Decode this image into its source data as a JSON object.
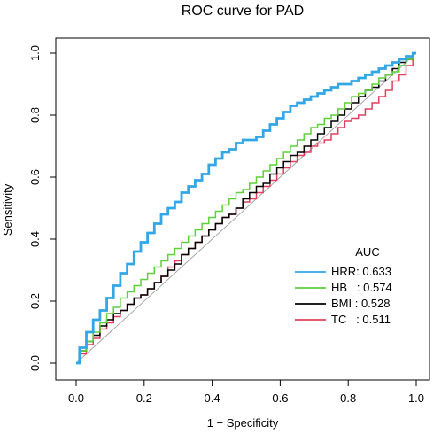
{
  "chart_data": {
    "type": "line",
    "title": "ROC curve for PAD",
    "xlabel": "1 − Specificity",
    "ylabel": "Sensitivity",
    "xlim": [
      0,
      1
    ],
    "ylim": [
      0,
      1
    ],
    "x_ticks": [
      "0.0",
      "0.2",
      "0.4",
      "0.6",
      "0.8",
      "1.0"
    ],
    "y_ticks": [
      "0.0",
      "0.2",
      "0.4",
      "0.6",
      "0.8",
      "1.0"
    ],
    "grid": false,
    "reference_line": {
      "from": [
        0,
        0
      ],
      "to": [
        1,
        1
      ],
      "color": "#a6a6a6"
    },
    "legend": {
      "title": "AUC",
      "position": "bottom-right",
      "entries": [
        "HRR: 0.633",
        "HB   : 0.574",
        "BMI : 0.528",
        "TC   : 0.511"
      ]
    },
    "series": [
      {
        "name": "HRR",
        "auc": 0.633,
        "color": "#33a6e5",
        "x": [
          0,
          0.02,
          0.04,
          0.06,
          0.08,
          0.1,
          0.12,
          0.14,
          0.16,
          0.18,
          0.2,
          0.22,
          0.24,
          0.26,
          0.28,
          0.3,
          0.32,
          0.34,
          0.36,
          0.38,
          0.4,
          0.42,
          0.44,
          0.46,
          0.48,
          0.5,
          0.52,
          0.54,
          0.56,
          0.58,
          0.6,
          0.62,
          0.64,
          0.66,
          0.68,
          0.7,
          0.72,
          0.74,
          0.76,
          0.78,
          0.8,
          0.82,
          0.84,
          0.86,
          0.88,
          0.9,
          0.92,
          0.94,
          0.96,
          0.98,
          1.0
        ],
        "y": [
          0,
          0.05,
          0.1,
          0.14,
          0.17,
          0.21,
          0.25,
          0.29,
          0.32,
          0.36,
          0.39,
          0.42,
          0.45,
          0.48,
          0.5,
          0.52,
          0.55,
          0.57,
          0.59,
          0.61,
          0.64,
          0.66,
          0.68,
          0.69,
          0.71,
          0.72,
          0.72,
          0.73,
          0.75,
          0.77,
          0.79,
          0.81,
          0.83,
          0.84,
          0.85,
          0.86,
          0.87,
          0.88,
          0.89,
          0.9,
          0.9,
          0.91,
          0.92,
          0.93,
          0.94,
          0.95,
          0.96,
          0.97,
          0.98,
          0.99,
          1.0
        ]
      },
      {
        "name": "HB",
        "auc": 0.574,
        "color": "#5fcf3a",
        "x": [
          0,
          0.02,
          0.04,
          0.06,
          0.08,
          0.1,
          0.12,
          0.14,
          0.16,
          0.18,
          0.2,
          0.22,
          0.24,
          0.26,
          0.28,
          0.3,
          0.32,
          0.34,
          0.36,
          0.38,
          0.4,
          0.42,
          0.44,
          0.46,
          0.48,
          0.5,
          0.52,
          0.54,
          0.56,
          0.58,
          0.6,
          0.62,
          0.64,
          0.66,
          0.68,
          0.7,
          0.72,
          0.74,
          0.76,
          0.78,
          0.8,
          0.82,
          0.84,
          0.86,
          0.88,
          0.9,
          0.92,
          0.94,
          0.96,
          0.98,
          1.0
        ],
        "y": [
          0,
          0.04,
          0.07,
          0.1,
          0.13,
          0.16,
          0.18,
          0.21,
          0.23,
          0.25,
          0.27,
          0.29,
          0.31,
          0.33,
          0.35,
          0.37,
          0.39,
          0.41,
          0.43,
          0.45,
          0.47,
          0.49,
          0.51,
          0.53,
          0.55,
          0.56,
          0.58,
          0.6,
          0.62,
          0.64,
          0.66,
          0.68,
          0.7,
          0.72,
          0.74,
          0.76,
          0.77,
          0.79,
          0.8,
          0.82,
          0.84,
          0.86,
          0.87,
          0.88,
          0.9,
          0.92,
          0.93,
          0.94,
          0.96,
          0.98,
          1.0
        ]
      },
      {
        "name": "BMI",
        "auc": 0.528,
        "color": "#000000",
        "x": [
          0,
          0.02,
          0.04,
          0.06,
          0.08,
          0.1,
          0.12,
          0.14,
          0.16,
          0.18,
          0.2,
          0.22,
          0.24,
          0.26,
          0.28,
          0.3,
          0.32,
          0.34,
          0.36,
          0.38,
          0.4,
          0.42,
          0.44,
          0.46,
          0.48,
          0.5,
          0.52,
          0.54,
          0.56,
          0.58,
          0.6,
          0.62,
          0.64,
          0.66,
          0.68,
          0.7,
          0.72,
          0.74,
          0.76,
          0.78,
          0.8,
          0.82,
          0.84,
          0.86,
          0.88,
          0.9,
          0.92,
          0.94,
          0.96,
          0.98,
          1.0
        ],
        "y": [
          0,
          0.04,
          0.07,
          0.09,
          0.12,
          0.14,
          0.16,
          0.17,
          0.19,
          0.21,
          0.22,
          0.24,
          0.26,
          0.28,
          0.3,
          0.32,
          0.35,
          0.37,
          0.39,
          0.41,
          0.43,
          0.45,
          0.47,
          0.48,
          0.5,
          0.53,
          0.55,
          0.57,
          0.58,
          0.61,
          0.63,
          0.65,
          0.67,
          0.68,
          0.7,
          0.72,
          0.74,
          0.76,
          0.78,
          0.8,
          0.82,
          0.84,
          0.86,
          0.88,
          0.89,
          0.91,
          0.93,
          0.95,
          0.97,
          0.98,
          1.0
        ]
      },
      {
        "name": "TC",
        "auc": 0.511,
        "color": "#e0405e",
        "x": [
          0,
          0.02,
          0.04,
          0.06,
          0.08,
          0.1,
          0.12,
          0.14,
          0.16,
          0.18,
          0.2,
          0.22,
          0.24,
          0.26,
          0.28,
          0.3,
          0.32,
          0.34,
          0.36,
          0.38,
          0.4,
          0.42,
          0.44,
          0.46,
          0.48,
          0.5,
          0.52,
          0.54,
          0.56,
          0.58,
          0.6,
          0.62,
          0.64,
          0.66,
          0.68,
          0.7,
          0.72,
          0.74,
          0.76,
          0.78,
          0.8,
          0.82,
          0.84,
          0.86,
          0.88,
          0.9,
          0.92,
          0.94,
          0.96,
          0.98,
          1.0
        ],
        "y": [
          0,
          0.03,
          0.06,
          0.08,
          0.11,
          0.13,
          0.15,
          0.17,
          0.19,
          0.21,
          0.22,
          0.24,
          0.26,
          0.28,
          0.31,
          0.33,
          0.35,
          0.37,
          0.39,
          0.41,
          0.43,
          0.45,
          0.47,
          0.48,
          0.5,
          0.52,
          0.53,
          0.55,
          0.57,
          0.59,
          0.61,
          0.63,
          0.65,
          0.67,
          0.68,
          0.7,
          0.71,
          0.72,
          0.74,
          0.76,
          0.78,
          0.79,
          0.8,
          0.82,
          0.84,
          0.86,
          0.88,
          0.91,
          0.93,
          0.96,
          1.0
        ]
      }
    ]
  }
}
